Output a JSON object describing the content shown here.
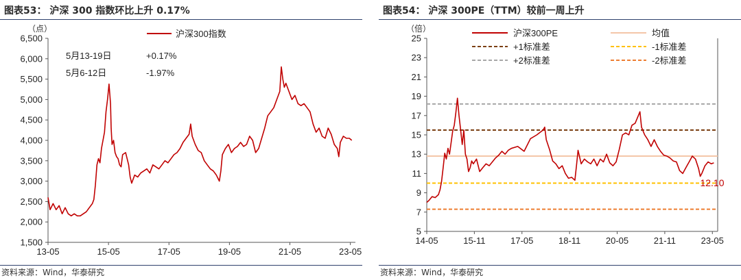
{
  "panels": {
    "left": {
      "title": "图表53： 沪深 300 指数环比上升 0.17%",
      "source": "资料来源：Wind，华泰研究"
    },
    "right": {
      "title": "图表54： 沪深 300PE（TTM）较前一周上升",
      "source": "资料来源：Wind，华泰研究"
    }
  },
  "colors": {
    "series_red": "#c00000",
    "axis": "#555555",
    "text": "#222222",
    "rule": "#2d3f6b"
  },
  "chart_data": [
    {
      "type": "line",
      "unit_label": "（点）",
      "ylim": [
        1500,
        6500
      ],
      "yticks": [
        1500,
        2000,
        2500,
        3000,
        3500,
        4000,
        4500,
        5000,
        5500,
        6000,
        6500
      ],
      "ytick_labels": [
        "1,500",
        "2,000",
        "2,500",
        "3,000",
        "3,500",
        "4,000",
        "4,500",
        "5,000",
        "5,500",
        "6,000",
        "6,500"
      ],
      "xlim": [
        2013.333,
        2023.5
      ],
      "xticks": [
        2013.333,
        2015.333,
        2017.333,
        2019.333,
        2021.333,
        2023.333
      ],
      "xtick_labels": [
        "13-05",
        "15-05",
        "17-05",
        "19-05",
        "21-05",
        "23-05"
      ],
      "grid": false,
      "legend_position": "top-center",
      "annotations": [
        {
          "label": "5月13-19日",
          "value": "+0.17%"
        },
        {
          "label": "5月6-12日",
          "value": "-1.97%"
        }
      ],
      "series": [
        {
          "name": "沪深300指数",
          "color": "#c00000",
          "x": [
            2013.333,
            2013.4,
            2013.5,
            2013.6,
            2013.7,
            2013.8,
            2013.9,
            2014.0,
            2014.1,
            2014.2,
            2014.3,
            2014.4,
            2014.5,
            2014.6,
            2014.7,
            2014.8,
            2014.85,
            2014.9,
            2014.95,
            2015.0,
            2015.05,
            2015.1,
            2015.15,
            2015.2,
            2015.25,
            2015.3,
            2015.35,
            2015.4,
            2015.42,
            2015.45,
            2015.5,
            2015.55,
            2015.6,
            2015.65,
            2015.7,
            2015.75,
            2015.8,
            2015.9,
            2016.0,
            2016.05,
            2016.1,
            2016.2,
            2016.3,
            2016.4,
            2016.5,
            2016.6,
            2016.7,
            2016.8,
            2016.9,
            2017.0,
            2017.1,
            2017.2,
            2017.3,
            2017.4,
            2017.5,
            2017.6,
            2017.7,
            2017.8,
            2017.9,
            2018.0,
            2018.05,
            2018.1,
            2018.2,
            2018.3,
            2018.4,
            2018.5,
            2018.6,
            2018.7,
            2018.8,
            2018.9,
            2019.0,
            2019.05,
            2019.1,
            2019.2,
            2019.3,
            2019.4,
            2019.5,
            2019.6,
            2019.7,
            2019.8,
            2019.9,
            2020.0,
            2020.1,
            2020.2,
            2020.3,
            2020.4,
            2020.5,
            2020.6,
            2020.7,
            2020.8,
            2020.9,
            2021.0,
            2021.05,
            2021.1,
            2021.15,
            2021.2,
            2021.3,
            2021.4,
            2021.5,
            2021.6,
            2021.7,
            2021.8,
            2021.9,
            2022.0,
            2022.1,
            2022.2,
            2022.3,
            2022.4,
            2022.5,
            2022.6,
            2022.7,
            2022.8,
            2022.9,
            2022.95,
            2023.0,
            2023.1,
            2023.2,
            2023.3,
            2023.38
          ],
          "y": [
            2600,
            2300,
            2450,
            2300,
            2400,
            2200,
            2350,
            2200,
            2150,
            2200,
            2150,
            2150,
            2200,
            2250,
            2350,
            2450,
            2550,
            2900,
            3400,
            3550,
            3450,
            3800,
            4000,
            4200,
            4700,
            5000,
            5380,
            4900,
            4300,
            3900,
            4000,
            3700,
            3600,
            3550,
            3400,
            3350,
            3650,
            3700,
            3400,
            3100,
            2950,
            3150,
            3100,
            3200,
            3250,
            3300,
            3200,
            3400,
            3350,
            3300,
            3400,
            3500,
            3450,
            3550,
            3650,
            3700,
            3800,
            3950,
            4050,
            4150,
            4400,
            4100,
            3900,
            3750,
            3700,
            3500,
            3400,
            3300,
            3250,
            3150,
            3000,
            3250,
            3650,
            3800,
            3900,
            3700,
            3800,
            3850,
            3950,
            3850,
            3900,
            4100,
            4000,
            3700,
            3800,
            4050,
            4300,
            4600,
            4700,
            4800,
            5000,
            5200,
            5800,
            5500,
            5300,
            5400,
            5200,
            5000,
            5100,
            4900,
            4850,
            4900,
            4800,
            4700,
            4400,
            4200,
            4300,
            4100,
            4050,
            4300,
            4150,
            3900,
            3800,
            3600,
            3950,
            4100,
            4050,
            4050,
            4000
          ]
        }
      ]
    },
    {
      "type": "line",
      "unit_label": "（倍）",
      "ylim": [
        5,
        25
      ],
      "yticks": [
        5,
        7,
        9,
        11,
        13,
        15,
        17,
        19,
        21,
        23,
        25
      ],
      "ytick_labels": [
        "5",
        "7",
        "9",
        "11",
        "13",
        "15",
        "17",
        "19",
        "21",
        "23",
        "25"
      ],
      "xlim": [
        2014.333,
        2023.5
      ],
      "xticks": [
        2014.333,
        2015.833,
        2017.333,
        2018.833,
        2020.333,
        2021.833,
        2023.333
      ],
      "xtick_labels": [
        "14-05",
        "15-11",
        "17-05",
        "18-11",
        "20-05",
        "21-11",
        "23-05"
      ],
      "grid": false,
      "legend_position": "top",
      "end_label": "12.10",
      "reference_lines": [
        {
          "name": "均值",
          "value": 12.8,
          "color": "#f4c6a8",
          "style": "solid"
        },
        {
          "name": "+1标准差",
          "value": 15.5,
          "color": "#7b3f12",
          "style": "dashed"
        },
        {
          "name": "-1标准差",
          "value": 10.0,
          "color": "#ffc000",
          "style": "dashed"
        },
        {
          "name": "+2标准差",
          "value": 18.2,
          "color": "#a6a6a6",
          "style": "dashed"
        },
        {
          "name": "-2标准差",
          "value": 7.3,
          "color": "#ed7d31",
          "style": "dashed"
        }
      ],
      "series": [
        {
          "name": "沪深300PE",
          "color": "#c00000",
          "x": [
            2014.333,
            2014.4,
            2014.5,
            2014.6,
            2014.7,
            2014.75,
            2014.8,
            2014.85,
            2014.9,
            2014.95,
            2015.0,
            2015.05,
            2015.1,
            2015.15,
            2015.2,
            2015.25,
            2015.3,
            2015.35,
            2015.4,
            2015.45,
            2015.5,
            2015.55,
            2015.6,
            2015.65,
            2015.7,
            2015.75,
            2015.8,
            2015.9,
            2016.0,
            2016.1,
            2016.2,
            2016.3,
            2016.4,
            2016.5,
            2016.6,
            2016.7,
            2016.8,
            2016.9,
            2017.0,
            2017.2,
            2017.4,
            2017.6,
            2017.8,
            2018.0,
            2018.05,
            2018.1,
            2018.2,
            2018.3,
            2018.4,
            2018.5,
            2018.6,
            2018.7,
            2018.8,
            2018.9,
            2019.0,
            2019.05,
            2019.1,
            2019.2,
            2019.3,
            2019.4,
            2019.5,
            2019.6,
            2019.7,
            2019.8,
            2019.9,
            2020.0,
            2020.1,
            2020.2,
            2020.3,
            2020.4,
            2020.5,
            2020.6,
            2020.7,
            2020.8,
            2020.9,
            2021.0,
            2021.05,
            2021.1,
            2021.15,
            2021.2,
            2021.3,
            2021.4,
            2021.5,
            2021.6,
            2021.7,
            2021.8,
            2021.9,
            2022.0,
            2022.1,
            2022.2,
            2022.3,
            2022.4,
            2022.5,
            2022.6,
            2022.7,
            2022.8,
            2022.9,
            2022.95,
            2023.0,
            2023.1,
            2023.2,
            2023.3,
            2023.38
          ],
          "y": [
            8.0,
            8.2,
            8.6,
            8.5,
            8.8,
            9.3,
            10.2,
            11.6,
            13.1,
            12.5,
            13.6,
            13.0,
            14.2,
            15.4,
            16.0,
            17.3,
            18.8,
            17.0,
            15.5,
            14.0,
            15.5,
            13.0,
            12.5,
            11.2,
            11.6,
            12.3,
            12.0,
            12.5,
            11.2,
            11.6,
            12.0,
            11.8,
            12.2,
            12.6,
            12.9,
            13.3,
            13.0,
            13.4,
            13.6,
            13.8,
            13.3,
            14.6,
            15.0,
            15.5,
            15.8,
            14.5,
            13.5,
            12.3,
            12.0,
            11.5,
            11.8,
            11.0,
            10.5,
            10.6,
            10.3,
            11.8,
            13.4,
            12.0,
            12.5,
            12.2,
            12.0,
            12.5,
            11.8,
            12.5,
            12.2,
            13.0,
            12.1,
            11.8,
            12.2,
            13.5,
            15.0,
            15.2,
            15.0,
            16.0,
            16.2,
            17.0,
            17.4,
            15.8,
            15.4,
            15.0,
            14.5,
            13.8,
            14.5,
            13.8,
            13.3,
            12.9,
            12.8,
            12.6,
            12.3,
            12.2,
            11.3,
            11.0,
            11.6,
            12.2,
            12.8,
            12.5,
            11.5,
            10.7,
            11.0,
            11.8,
            12.2,
            12.0,
            12.1
          ]
        }
      ]
    }
  ]
}
